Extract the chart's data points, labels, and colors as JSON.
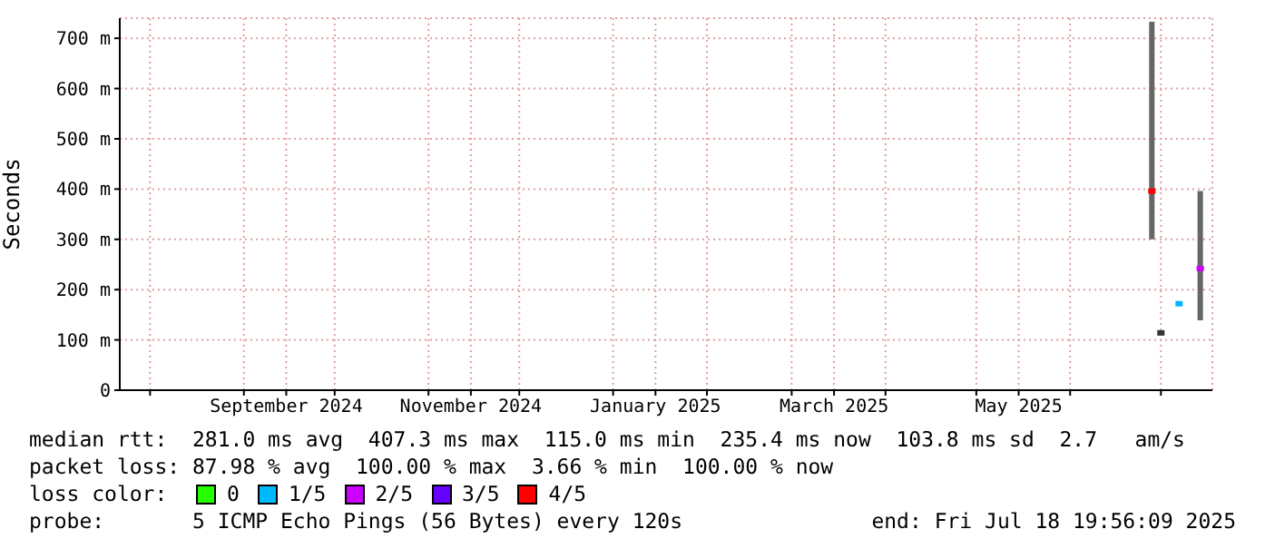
{
  "chart_data": {
    "type": "scatter",
    "ylabel": "Seconds",
    "legend_title": "loss color:",
    "legend": "bottom",
    "grid": true,
    "marker": "square",
    "xlim": [
      "2024-07-22",
      "2025-07-18"
    ],
    "xticks": [
      {
        "value": "2024-08-01",
        "label": null
      },
      {
        "value": "2024-09-01",
        "label": null
      },
      {
        "value": "2024-09-15",
        "label": "September 2024"
      },
      {
        "value": "2024-10-01",
        "label": null
      },
      {
        "value": "2024-11-01",
        "label": null
      },
      {
        "value": "2024-11-15",
        "label": "November 2024"
      },
      {
        "value": "2024-12-01",
        "label": null
      },
      {
        "value": "2025-01-01",
        "label": null
      },
      {
        "value": "2025-01-15",
        "label": "January 2025"
      },
      {
        "value": "2025-02-01",
        "label": null
      },
      {
        "value": "2025-03-01",
        "label": null
      },
      {
        "value": "2025-03-15",
        "label": "March 2025"
      },
      {
        "value": "2025-04-01",
        "label": null
      },
      {
        "value": "2025-05-01",
        "label": null
      },
      {
        "value": "2025-05-15",
        "label": "May 2025"
      },
      {
        "value": "2025-06-01",
        "label": null
      },
      {
        "value": "2025-07-01",
        "label": null
      }
    ],
    "ylim": [
      0,
      740
    ],
    "yticks": [
      {
        "value": 0,
        "label": "0"
      },
      {
        "value": 100,
        "label": "100 m"
      },
      {
        "value": 200,
        "label": "200 m"
      },
      {
        "value": 300,
        "label": "300 m"
      },
      {
        "value": 400,
        "label": "400 m"
      },
      {
        "value": 500,
        "label": "500 m"
      },
      {
        "value": 600,
        "label": "600 m"
      },
      {
        "value": 700,
        "label": "700 m"
      }
    ],
    "series": [
      {
        "name": "0",
        "color": "#26ff00"
      },
      {
        "name": "1/5",
        "color": "#00b8ff",
        "x": [
          "2025-07-07"
        ],
        "values": [
          172
        ]
      },
      {
        "name": "2/5",
        "color": "#cc00ff",
        "x": [
          "2025-07-14"
        ],
        "values": [
          242
        ],
        "errors": [
          [
            139,
            396
          ]
        ]
      },
      {
        "name": "3/5",
        "color": "#6600ff"
      },
      {
        "name": "4/5",
        "color": "#ff0000",
        "x": [
          "2025-06-28"
        ],
        "values": [
          396
        ],
        "errors": [
          [
            300,
            733
          ]
        ]
      },
      {
        "color": "#333333",
        "x": [
          "2025-07-01"
        ],
        "values": [
          114
        ]
      }
    ],
    "annotations": [
      "median rtt:  281.0 ms avg  407.3 ms max  115.0 ms min  235.4 ms now  103.8 ms sd  2.7   am/s",
      "packet loss: 87.98 % avg  100.00 % max  3.66 % min  100.00 % now",
      "probe:       5 ICMP Echo Pings (56 Bytes) every 120s",
      "end: Fri Jul 18 19:56:09 2025"
    ]
  }
}
